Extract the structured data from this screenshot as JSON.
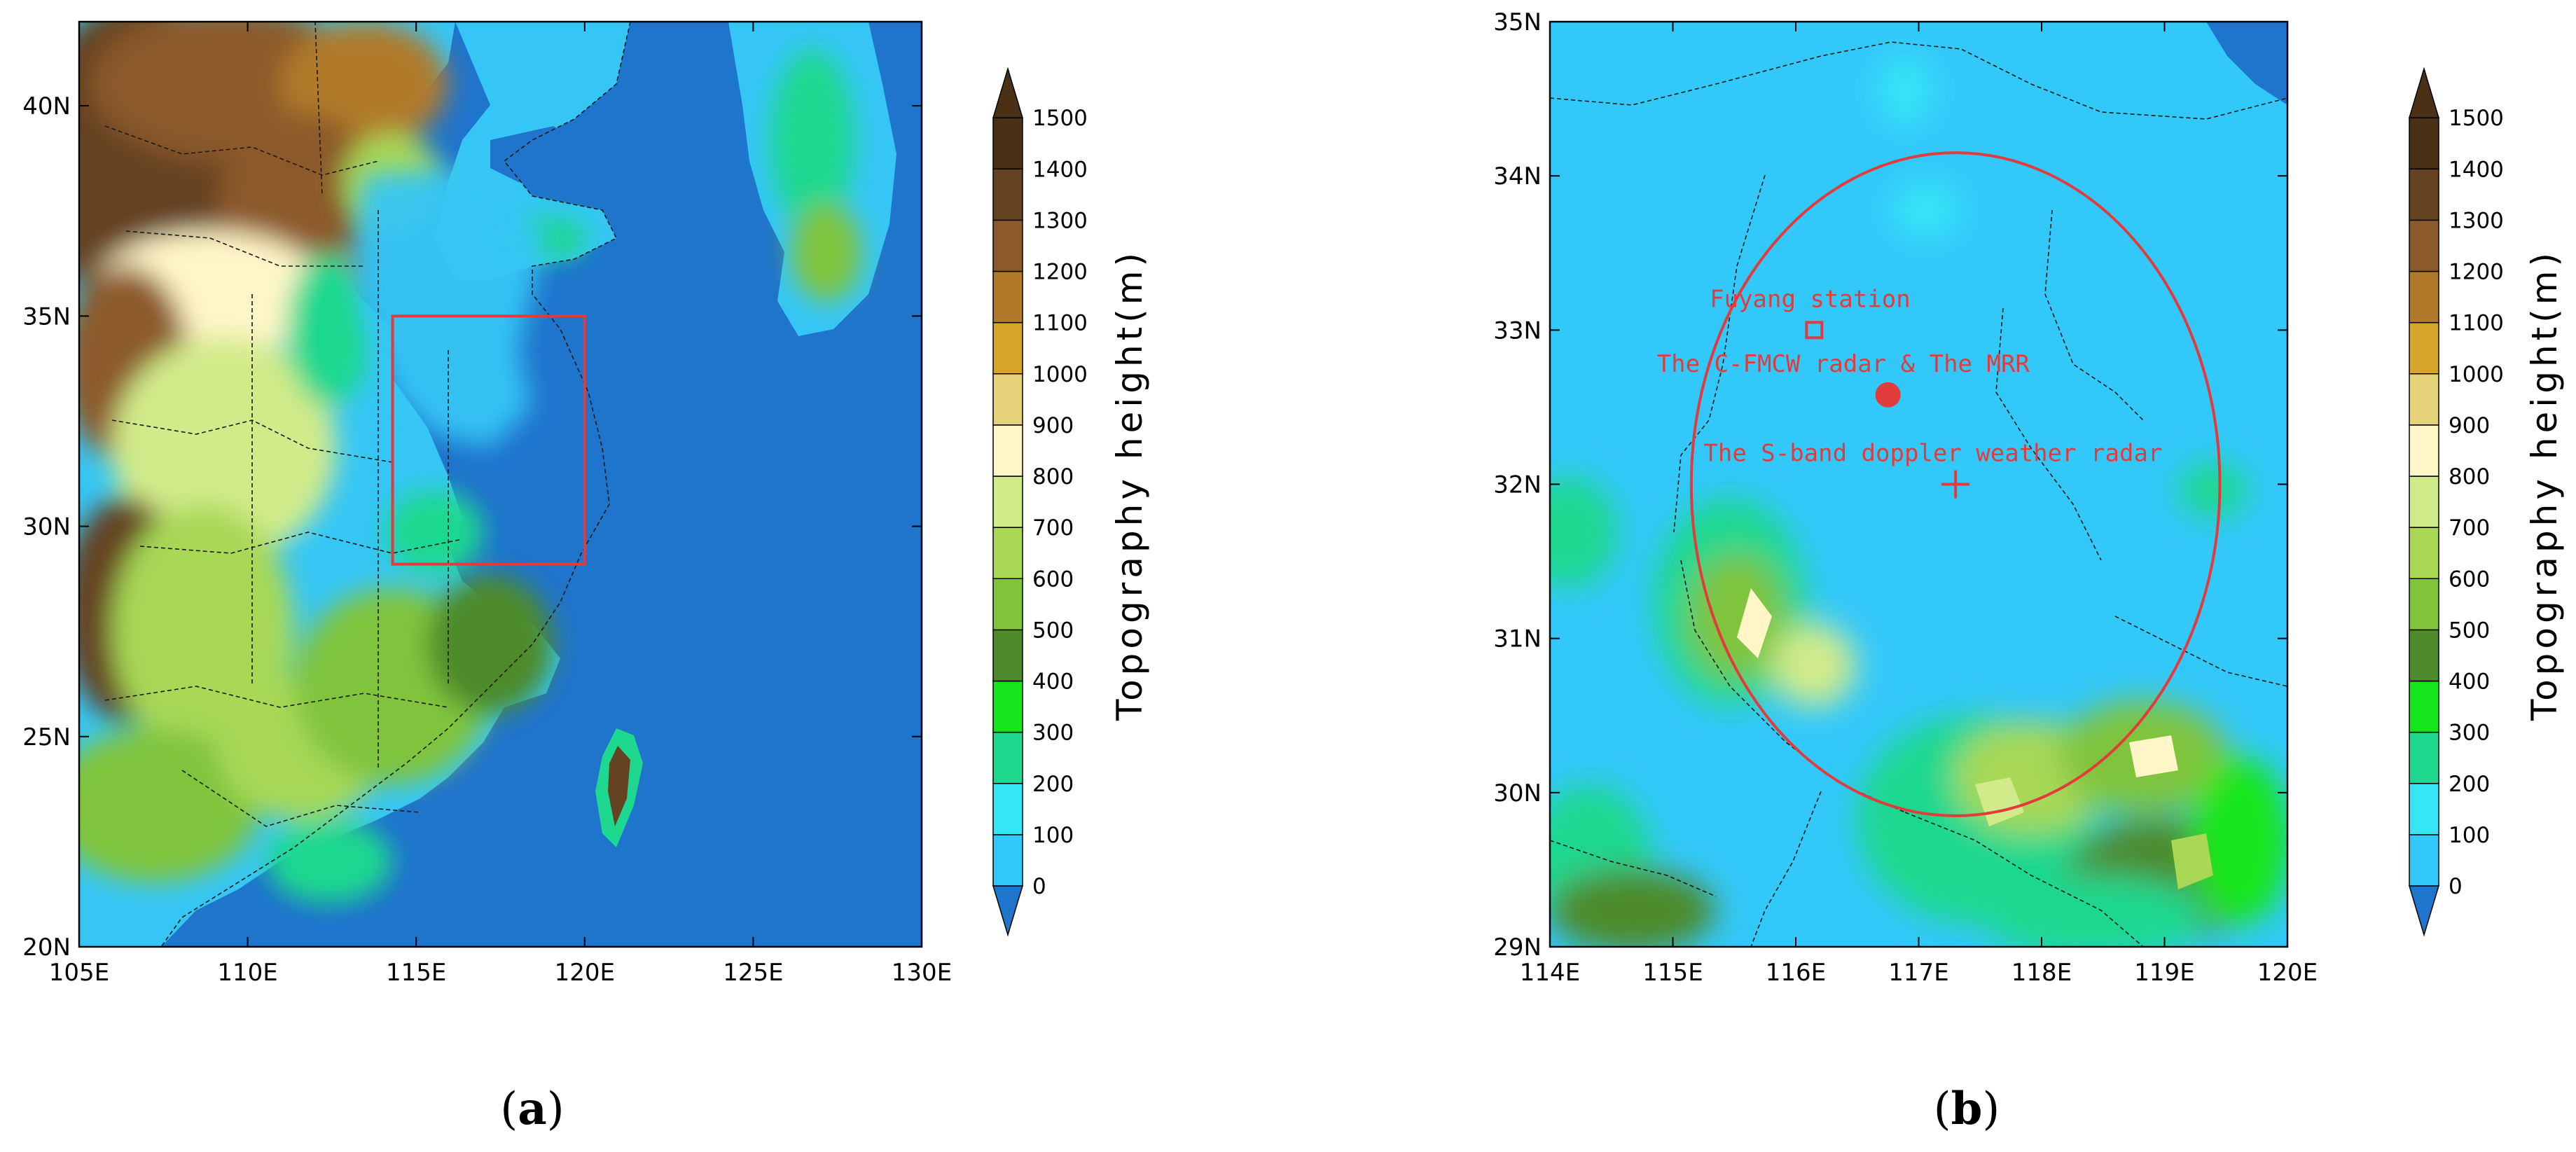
{
  "colors": {
    "sea": "#1f74cc",
    "elev_bins": [
      "#1f74cc",
      "#33c8fa",
      "#36e6f5",
      "#1fd88f",
      "#14e61b",
      "#4e8a2c",
      "#80c43c",
      "#a8d856",
      "#d2eb8a",
      "#fff6c8",
      "#e6d278",
      "#d6a62a",
      "#b07a2a",
      "#8c5a2a",
      "#654221",
      "#4a3115"
    ],
    "box": "#e23b3b",
    "annotation": "#e23b3b"
  },
  "panels": [
    {
      "id": "a",
      "label": "a",
      "x_ticks": [
        "105E",
        "110E",
        "115E",
        "120E",
        "125E",
        "130E"
      ],
      "y_ticks": [
        "20N",
        "25N",
        "30N",
        "35N",
        "40N"
      ],
      "xlim": [
        105,
        130
      ],
      "ylim": [
        20,
        42
      ],
      "box_extent": {
        "lon": [
          114.3,
          120.0
        ],
        "lat": [
          29.1,
          35.0
        ]
      }
    },
    {
      "id": "b",
      "label": "b",
      "x_ticks": [
        "114E",
        "115E",
        "116E",
        "117E",
        "118E",
        "119E",
        "120E"
      ],
      "y_ticks": [
        "29N",
        "30N",
        "31N",
        "32N",
        "33N",
        "34N",
        "35N"
      ],
      "xlim": [
        114,
        120
      ],
      "ylim": [
        29,
        35
      ],
      "circle_center": {
        "lon": 117.3,
        "lat": 32.0
      },
      "circle_radius_deg": 2.15,
      "annotations": [
        {
          "text": "Fuyang station",
          "lon": 115.3,
          "lat": 33.15
        },
        {
          "text": "The C-FMCW radar & The MRR",
          "lon": 114.87,
          "lat": 32.73
        },
        {
          "text": "The S-band doppler weather radar",
          "lon": 115.25,
          "lat": 32.15
        }
      ],
      "markers": [
        {
          "name": "fuyang-station-marker",
          "shape": "square",
          "lon": 116.15,
          "lat": 33.0
        },
        {
          "name": "c-fmcw-radar-marker",
          "shape": "dot",
          "lon": 116.75,
          "lat": 32.58
        },
        {
          "name": "s-band-radar-marker",
          "shape": "cross",
          "lon": 117.3,
          "lat": 32.0
        }
      ]
    }
  ],
  "colorbar": {
    "title": "Topography height(m)",
    "labels": [
      "0",
      "100",
      "200",
      "300",
      "400",
      "500",
      "600",
      "700",
      "800",
      "900",
      "1000",
      "1100",
      "1200",
      "1300",
      "1400",
      "1500"
    ]
  }
}
